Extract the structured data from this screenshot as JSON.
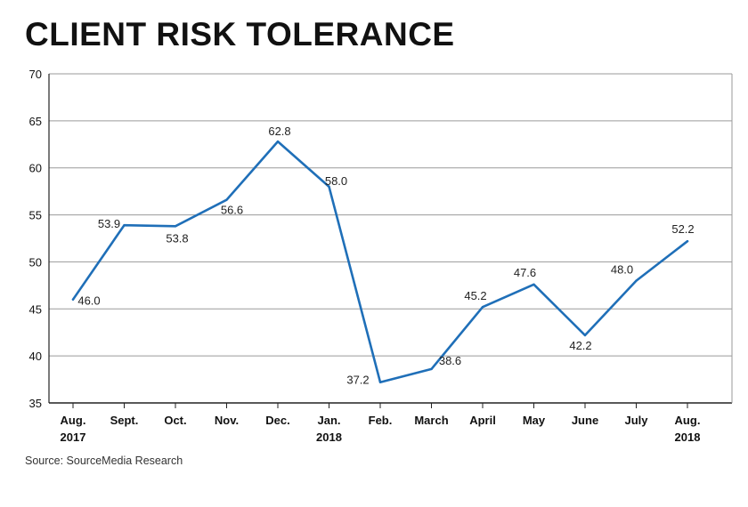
{
  "chart_data": {
    "type": "line",
    "title": "CLIENT RISK TOLERANCE",
    "source": "Source: SourceMedia Research",
    "ylim": [
      35,
      70
    ],
    "yticks": [
      35,
      40,
      45,
      50,
      55,
      60,
      65,
      70
    ],
    "grid": true,
    "line_color": "#1f6fb8",
    "categories": [
      [
        "Aug.",
        "2017"
      ],
      [
        "Sept."
      ],
      [
        "Oct."
      ],
      [
        "Nov."
      ],
      [
        "Dec."
      ],
      [
        "Jan.",
        "2018"
      ],
      [
        "Feb."
      ],
      [
        "March"
      ],
      [
        "April"
      ],
      [
        "May"
      ],
      [
        "June"
      ],
      [
        "July"
      ],
      [
        "Aug.",
        "2018"
      ]
    ],
    "values": [
      46.0,
      53.9,
      53.8,
      56.6,
      62.8,
      58.0,
      37.2,
      38.6,
      45.2,
      47.6,
      42.2,
      48.0,
      52.2
    ],
    "value_labels": [
      "46.0",
      "53.9",
      "53.8",
      "56.6",
      "62.8",
      "58.0",
      "37.2",
      "38.6",
      "45.2",
      "47.6",
      "42.2",
      "48.0",
      "52.2"
    ]
  }
}
